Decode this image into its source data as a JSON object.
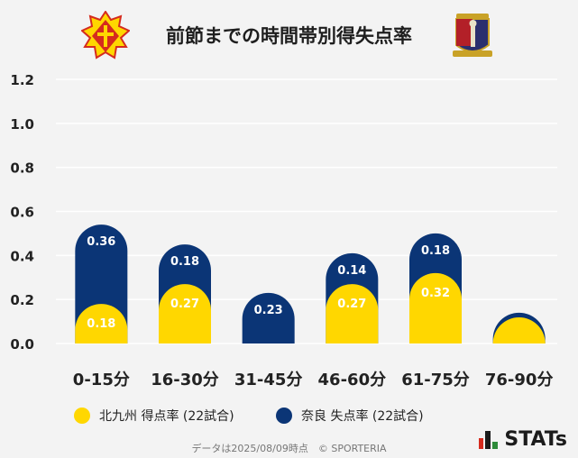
{
  "title": "前節までの時間帯別得失点率",
  "colors": {
    "home": "#ffd700",
    "away": "#0b3576",
    "grid": "#ffffff",
    "background": "#f3f3f3"
  },
  "legend": {
    "home_label": "北九州 得点率 (22試合)",
    "away_label": "奈良 失点率 (22試合)"
  },
  "footer": "データは2025/08/09時点　© SPORTERIA",
  "brand": "STATs",
  "chart_data": {
    "type": "bar",
    "stacked": true,
    "categories": [
      "0-15分",
      "16-30分",
      "31-45分",
      "46-60分",
      "61-75分",
      "76-90分"
    ],
    "series": [
      {
        "name": "北九州 得点率 (22試合)",
        "values": [
          0.18,
          0.27,
          0,
          0.27,
          0.32,
          0.09
        ],
        "labels": [
          "0.18",
          "0.27",
          "",
          "0.27",
          "0.32",
          ""
        ]
      },
      {
        "name": "奈良 失点率 (22試合)",
        "values": [
          0.36,
          0.18,
          0.23,
          0.14,
          0.18,
          0.05
        ],
        "labels": [
          "0.36",
          "0.18",
          "0.23",
          "0.14",
          "0.18",
          ""
        ]
      }
    ],
    "yticks": [
      "0.0",
      "0.2",
      "0.4",
      "0.6",
      "0.8",
      "1.0",
      "1.2"
    ],
    "ylim": [
      0,
      1.2
    ],
    "grid": true,
    "legend_position": "bottom"
  }
}
